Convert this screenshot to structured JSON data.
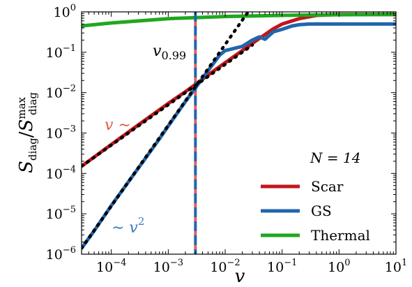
{
  "chart_data": {
    "type": "line",
    "title": "",
    "xlabel": "v",
    "ylabel": "S_diag / S_diag^max",
    "xscale": "log",
    "yscale": "log",
    "xlim": [
      3e-05,
      10
    ],
    "ylim": [
      1e-06,
      1
    ],
    "x_ticks": [
      "10^-4",
      "10^-3",
      "10^-2",
      "10^-1",
      "10^0",
      "10^1"
    ],
    "y_ticks": [
      "10^-6",
      "10^-5",
      "10^-4",
      "10^-3",
      "10^-2",
      "10^-1",
      "10^0"
    ],
    "grid": false,
    "legend": {
      "title": "N = 14",
      "placement": "lower-right",
      "entries": [
        "Scar",
        "GS",
        "Thermal"
      ]
    },
    "colors": {
      "Scar": "#c0171c",
      "GS": "#2166ac",
      "Thermal": "#1ea81e",
      "fit": "#000000"
    },
    "series": [
      {
        "name": "Scar",
        "x": [
          3e-05,
          0.0001,
          0.0003,
          0.001,
          0.002,
          0.003,
          0.006,
          0.01,
          0.02,
          0.04,
          0.07,
          0.1,
          0.2,
          0.4,
          1,
          10
        ],
        "y": [
          0.00015,
          0.00052,
          0.0016,
          0.0054,
          0.0105,
          0.016,
          0.033,
          0.055,
          0.11,
          0.22,
          0.38,
          0.5,
          0.68,
          0.82,
          0.86,
          0.86
        ]
      },
      {
        "name": "GS",
        "x": [
          3e-05,
          5e-05,
          0.0001,
          0.0002,
          0.0004,
          0.0007,
          0.001,
          0.002,
          0.003,
          0.005,
          0.008,
          0.01,
          0.02,
          0.03,
          0.04,
          0.05,
          0.07,
          0.1,
          0.15,
          0.2,
          0.3,
          0.5,
          1,
          10
        ],
        "y": [
          1.4e-06,
          3.8e-06,
          1.6e-05,
          6.2e-05,
          0.00024,
          0.00072,
          0.0015,
          0.006,
          0.013,
          0.035,
          0.085,
          0.11,
          0.14,
          0.2,
          0.24,
          0.21,
          0.32,
          0.37,
          0.45,
          0.48,
          0.5,
          0.5,
          0.5,
          0.5
        ]
      },
      {
        "name": "Thermal",
        "x": [
          3e-05,
          0.0001,
          0.001,
          0.01,
          0.1,
          1,
          10
        ],
        "y": [
          0.45,
          0.53,
          0.68,
          0.77,
          0.82,
          0.85,
          0.86
        ]
      }
    ],
    "fits": [
      {
        "label": "v ~",
        "exponent": 1,
        "x": [
          3e-05,
          0.03
        ],
        "y": [
          0.00015,
          0.15
        ],
        "style": "dotted"
      },
      {
        "label": "~ v^2",
        "exponent": 2,
        "x": [
          3e-05,
          0.3
        ],
        "y": [
          1.4e-06,
          140
        ],
        "style": "dotted"
      }
    ],
    "reference_line": {
      "label": "v_{0.99}",
      "x": 0.003,
      "style": "dashed"
    },
    "annotations": {
      "v099": "v",
      "v099_sub": "0.99",
      "linear": "v ∼",
      "quadratic": "∼ v",
      "quadratic_sup": "2"
    }
  }
}
